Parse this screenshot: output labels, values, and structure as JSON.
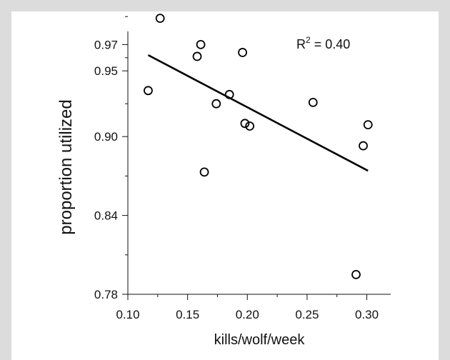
{
  "chart_data": {
    "type": "scatter",
    "xlabel": "kills/wolf/week",
    "ylabel": "proportion utilized",
    "annotation": {
      "base": "R",
      "sup": "2",
      "rest": " = 0.40"
    },
    "xlim": [
      0.1,
      0.32
    ],
    "ylim": [
      0.78,
      0.98
    ],
    "xticks": [
      0.1,
      0.15,
      0.2,
      0.25,
      0.3
    ],
    "xtick_labels": [
      "0.10",
      "0.15",
      "0.20",
      "0.25",
      "0.30"
    ],
    "yticks": [
      0.78,
      0.84,
      0.9,
      0.95,
      0.97
    ],
    "ytick_labels": [
      "0.78",
      "0.84",
      "0.90",
      "0.95",
      "0.97"
    ],
    "grid": false,
    "points": [
      {
        "x": 0.117,
        "y": 0.935
      },
      {
        "x": 0.127,
        "y": 0.99
      },
      {
        "x": 0.158,
        "y": 0.961
      },
      {
        "x": 0.161,
        "y": 0.97
      },
      {
        "x": 0.164,
        "y": 0.873
      },
      {
        "x": 0.174,
        "y": 0.925
      },
      {
        "x": 0.185,
        "y": 0.932
      },
      {
        "x": 0.196,
        "y": 0.964
      },
      {
        "x": 0.198,
        "y": 0.91
      },
      {
        "x": 0.202,
        "y": 0.908
      },
      {
        "x": 0.255,
        "y": 0.926
      },
      {
        "x": 0.291,
        "y": 0.795
      },
      {
        "x": 0.297,
        "y": 0.893
      },
      {
        "x": 0.301,
        "y": 0.909
      }
    ],
    "trendline": {
      "x": [
        0.117,
        0.301
      ],
      "y": [
        0.962,
        0.874
      ]
    }
  }
}
